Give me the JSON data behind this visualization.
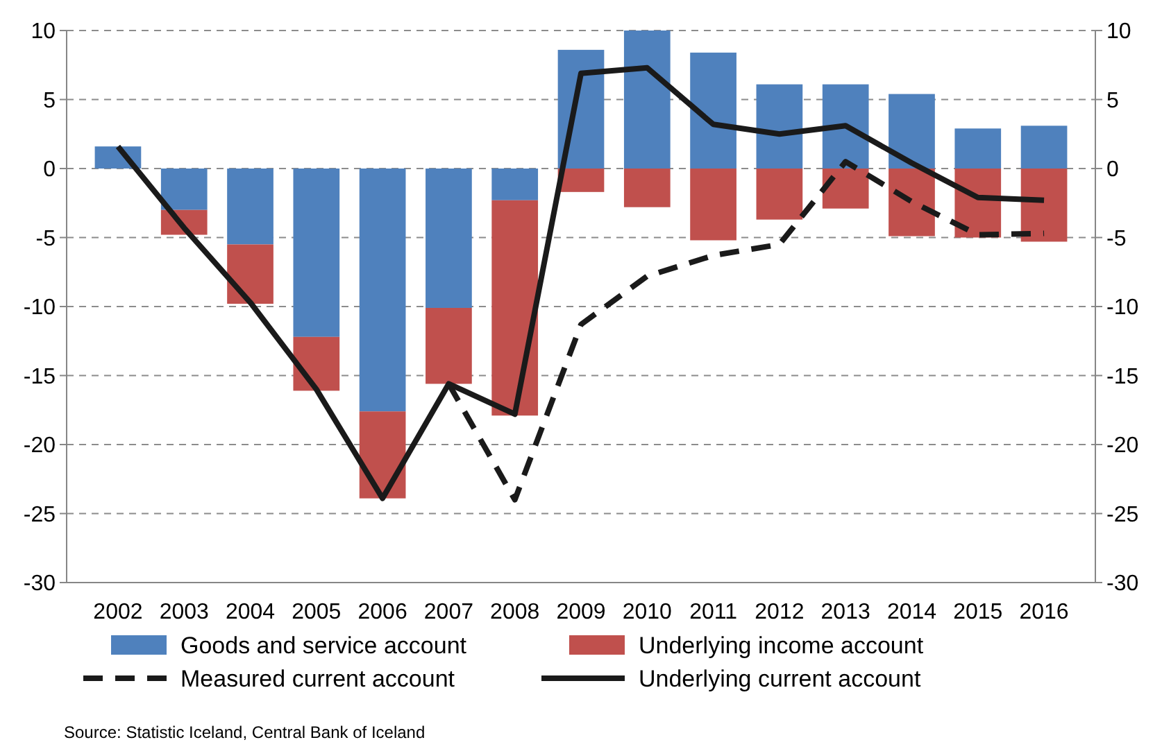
{
  "chart_data": {
    "type": "bar",
    "stacked": true,
    "categories": [
      "2002",
      "2003",
      "2004",
      "2005",
      "2006",
      "2007",
      "2008",
      "2009",
      "2010",
      "2011",
      "2012",
      "2013",
      "2014",
      "2015",
      "2016"
    ],
    "series": [
      {
        "name": "Goods and service account",
        "color": "#4f81bd",
        "values": [
          1.6,
          -3,
          -5.5,
          -12.2,
          -17.6,
          -10.1,
          -2.3,
          8.6,
          10,
          8.4,
          6.1,
          6.1,
          5.4,
          2.9,
          3.1
        ]
      },
      {
        "name": "Underlying income account",
        "color": "#c0504d",
        "values": [
          null,
          -1.8,
          -4.3,
          -3.9,
          -6.3,
          -5.5,
          -15.6,
          -1.7,
          -2.8,
          -5.2,
          -3.7,
          -2.9,
          -4.9,
          -5,
          -5.3
        ]
      },
      {
        "name": "Measured current account",
        "type": "line",
        "color": "#1a1a1a",
        "line_style": "dashed",
        "values": [
          null,
          null,
          null,
          null,
          null,
          -15.6,
          -24,
          -11.3,
          -7.8,
          -6.3,
          -5.5,
          0.5,
          -2.4,
          -4.8,
          -4.7
        ]
      },
      {
        "name": "Underlying current account",
        "type": "line",
        "color": "#1a1a1a",
        "line_style": "solid",
        "values": [
          1.6,
          -4.3,
          -9.7,
          -16,
          -23.9,
          -15.6,
          -17.8,
          6.9,
          7.3,
          3.2,
          2.5,
          3.1,
          0.4,
          -2.1,
          -2.3
        ]
      }
    ],
    "ylim": [
      -30,
      10
    ],
    "yticks": [
      -30,
      -25,
      -20,
      -15,
      -10,
      -5,
      0,
      5,
      10
    ],
    "y2lim": [
      -30,
      10
    ],
    "y2ticks": [
      -30,
      -25,
      -20,
      -15,
      -10,
      -5,
      0,
      5,
      10
    ],
    "grid": "y",
    "legend": "bottom",
    "annotations": [
      "Source: Statistic Iceland, Central Bank of Iceland"
    ]
  }
}
